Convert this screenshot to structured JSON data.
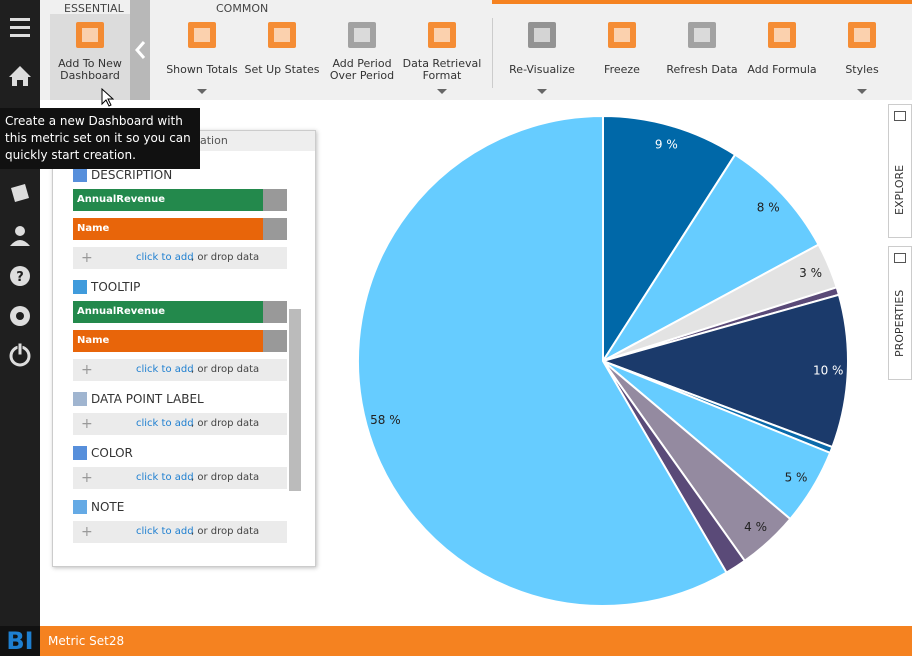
{
  "toolbar": {
    "sections": [
      "ESSENTIAL",
      "COMMON"
    ],
    "buttons": [
      {
        "label": [
          "Add To New",
          "Dashboard"
        ]
      },
      {
        "label": [
          "Shown Totals"
        ]
      },
      {
        "label": [
          "Set Up States"
        ]
      },
      {
        "label": [
          "Add Period",
          "Over Period"
        ]
      },
      {
        "label": [
          "Data Retrieval",
          "Format"
        ]
      },
      {
        "label": [
          "Re-Visualize"
        ]
      },
      {
        "label": [
          "Freeze"
        ]
      },
      {
        "label": [
          "Refresh Data"
        ]
      },
      {
        "label": [
          "Add Formula"
        ]
      },
      {
        "label": [
          "Styles"
        ]
      }
    ]
  },
  "tooltip": "Create a new Dashboard with this metric set on it so you can quickly start creation.",
  "panel": {
    "header": "ation",
    "add_link": "click to add",
    "add_suffix": ", or drop data",
    "sections": [
      {
        "title": "DESCRIPTION",
        "fields": [
          "AnnualRevenue",
          "Name"
        ]
      },
      {
        "title": "TOOLTIP",
        "fields": [
          "AnnualRevenue",
          "Name"
        ]
      },
      {
        "title": "DATA POINT LABEL",
        "fields": []
      },
      {
        "title": "COLOR",
        "fields": []
      },
      {
        "title": "NOTE",
        "fields": []
      }
    ]
  },
  "side_tabs": [
    "EXPLORE",
    "PROPERTIES"
  ],
  "footer": {
    "logo": "BI",
    "title": "Metric Set28"
  },
  "chart_data": {
    "type": "pie",
    "values": [
      9,
      8,
      3,
      0.5,
      10,
      0.4,
      5,
      4,
      1.4,
      58
    ],
    "value_labels": [
      "9 %",
      "8 %",
      "3 %",
      null,
      "10 %",
      null,
      "5 %",
      "4 %",
      null,
      "58 %"
    ],
    "colors": [
      "#0068a8",
      "#66ccff",
      "#e3e3e3",
      "#5a4a78",
      "#1b3a6b",
      "#0a6aab",
      "#66ccff",
      "#948aa0",
      "#5a4a78",
      "#66ccff"
    ]
  }
}
